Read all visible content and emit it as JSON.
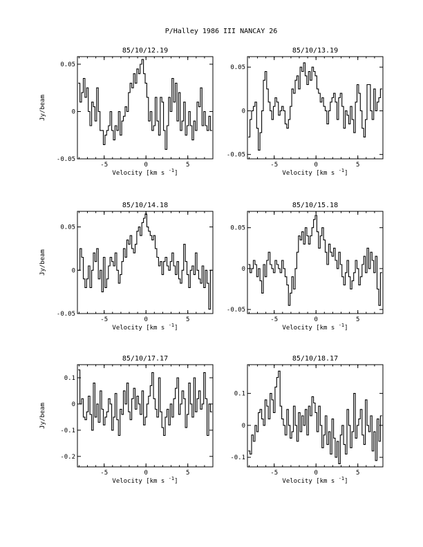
{
  "figure": {
    "title": "P/Halley 1986 III   NANCAY     26"
  },
  "chart_data": [
    {
      "type": "line",
      "title": "85/10/12.19",
      "xlabel": "Velocity [km s",
      "xlabel_sup": "-1",
      "xlabel_end": "]",
      "ylabel": "Jy/beam",
      "xlim": [
        -8.2,
        8.0
      ],
      "ylim": [
        -0.05,
        0.058
      ],
      "xticks": [
        -5,
        0,
        5
      ],
      "yticks": [
        -0.05,
        0,
        0.05
      ],
      "ytick_labels": [
        "-0.05",
        "0",
        "0.05"
      ],
      "x": [
        -8.0,
        -7.8,
        -7.6,
        -7.4,
        -7.2,
        -7.0,
        -6.8,
        -6.6,
        -6.4,
        -6.2,
        -6.0,
        -5.8,
        -5.6,
        -5.4,
        -5.2,
        -5.0,
        -4.8,
        -4.6,
        -4.4,
        -4.2,
        -4.0,
        -3.8,
        -3.6,
        -3.4,
        -3.2,
        -3.0,
        -2.8,
        -2.6,
        -2.4,
        -2.2,
        -2.0,
        -1.8,
        -1.6,
        -1.4,
        -1.2,
        -1.0,
        -0.8,
        -0.6,
        -0.4,
        -0.2,
        0.0,
        0.2,
        0.4,
        0.6,
        0.8,
        1.0,
        1.2,
        1.4,
        1.6,
        1.8,
        2.0,
        2.2,
        2.4,
        2.6,
        2.8,
        3.0,
        3.2,
        3.4,
        3.6,
        3.8,
        4.0,
        4.2,
        4.4,
        4.6,
        4.8,
        5.0,
        5.2,
        5.4,
        5.6,
        5.8,
        6.0,
        6.2,
        6.4,
        6.6,
        6.8,
        7.0,
        7.2,
        7.4,
        7.6,
        7.8
      ],
      "y": [
        0.03,
        0.01,
        0.02,
        0.035,
        0.015,
        0.025,
        0.0,
        -0.015,
        0.01,
        0.005,
        -0.01,
        0.025,
        0.0,
        -0.02,
        -0.02,
        -0.035,
        -0.025,
        -0.02,
        -0.015,
        0.0,
        -0.02,
        -0.03,
        -0.015,
        -0.02,
        0.0,
        -0.025,
        -0.01,
        -0.005,
        0.005,
        0.0,
        0.02,
        0.03,
        0.025,
        0.04,
        0.03,
        0.045,
        0.04,
        0.05,
        0.055,
        0.04,
        0.03,
        0.015,
        -0.01,
        0.0,
        -0.02,
        -0.015,
        0.015,
        -0.01,
        -0.025,
        0.015,
        0.01,
        -0.02,
        -0.04,
        -0.015,
        0.015,
        0.0,
        0.035,
        0.01,
        0.03,
        -0.01,
        0.02,
        -0.02,
        -0.01,
        0.01,
        -0.025,
        -0.015,
        0.0,
        -0.015,
        -0.03,
        -0.01,
        -0.02,
        0.01,
        0.005,
        0.025,
        -0.015,
        0.0,
        -0.015,
        -0.02,
        -0.005,
        -0.02
      ]
    },
    {
      "type": "line",
      "title": "85/10/13.19",
      "xlabel": "Velocity [km s",
      "xlabel_sup": "-1",
      "xlabel_end": "]",
      "ylabel": "",
      "xlim": [
        -8.2,
        8.0
      ],
      "ylim": [
        -0.055,
        0.062
      ],
      "xticks": [
        -5,
        0,
        5
      ],
      "yticks": [
        -0.05,
        0,
        0.05
      ],
      "ytick_labels": [
        "-0.05",
        "0",
        "0.05"
      ],
      "x": [
        -8.0,
        -7.8,
        -7.6,
        -7.4,
        -7.2,
        -7.0,
        -6.8,
        -6.6,
        -6.4,
        -6.2,
        -6.0,
        -5.8,
        -5.6,
        -5.4,
        -5.2,
        -5.0,
        -4.8,
        -4.6,
        -4.4,
        -4.2,
        -4.0,
        -3.8,
        -3.6,
        -3.4,
        -3.2,
        -3.0,
        -2.8,
        -2.6,
        -2.4,
        -2.2,
        -2.0,
        -1.8,
        -1.6,
        -1.4,
        -1.2,
        -1.0,
        -0.8,
        -0.6,
        -0.4,
        -0.2,
        0.0,
        0.2,
        0.4,
        0.6,
        0.8,
        1.0,
        1.2,
        1.4,
        1.6,
        1.8,
        2.0,
        2.2,
        2.4,
        2.6,
        2.8,
        3.0,
        3.2,
        3.4,
        3.6,
        3.8,
        4.0,
        4.2,
        4.4,
        4.6,
        4.8,
        5.0,
        5.2,
        5.4,
        5.6,
        5.8,
        6.0,
        6.2,
        6.4,
        6.6,
        6.8,
        7.0,
        7.2,
        7.4,
        7.6,
        7.8
      ],
      "y": [
        -0.03,
        -0.01,
        0.0,
        0.005,
        0.01,
        -0.02,
        -0.045,
        -0.025,
        0.0,
        0.035,
        0.045,
        0.025,
        0.01,
        0.0,
        -0.01,
        0.005,
        0.015,
        0.01,
        -0.005,
        0.0,
        0.005,
        0.0,
        -0.015,
        -0.02,
        -0.01,
        0.005,
        0.025,
        0.02,
        0.035,
        0.04,
        0.025,
        0.05,
        0.045,
        0.055,
        0.04,
        0.03,
        0.045,
        0.035,
        0.05,
        0.045,
        0.04,
        0.025,
        0.02,
        0.01,
        0.015,
        0.005,
        0.0,
        -0.015,
        0.0,
        0.01,
        0.015,
        0.02,
        0.01,
        -0.01,
        0.015,
        0.02,
        0.005,
        -0.02,
        0.0,
        -0.005,
        -0.015,
        0.005,
        -0.01,
        -0.025,
        0.01,
        0.03,
        0.02,
        0.0,
        -0.02,
        -0.03,
        -0.01,
        0.03,
        0.03,
        0.0,
        -0.01,
        0.025,
        0.0,
        0.01,
        0.015,
        0.025
      ]
    },
    {
      "type": "line",
      "title": "85/10/14.18",
      "xlabel": "Velocity [km s",
      "xlabel_sup": "-1",
      "xlabel_end": "]",
      "ylabel": "Jy/beam",
      "xlim": [
        -8.2,
        8.0
      ],
      "ylim": [
        -0.05,
        0.068
      ],
      "xticks": [
        -5,
        0,
        5
      ],
      "yticks": [
        -0.05,
        0,
        0.05
      ],
      "ytick_labels": [
        "-0.05",
        "0",
        "0.05"
      ],
      "x": [
        -8.0,
        -7.8,
        -7.6,
        -7.4,
        -7.2,
        -7.0,
        -6.8,
        -6.6,
        -6.4,
        -6.2,
        -6.0,
        -5.8,
        -5.6,
        -5.4,
        -5.2,
        -5.0,
        -4.8,
        -4.6,
        -4.4,
        -4.2,
        -4.0,
        -3.8,
        -3.6,
        -3.4,
        -3.2,
        -3.0,
        -2.8,
        -2.6,
        -2.4,
        -2.2,
        -2.0,
        -1.8,
        -1.6,
        -1.4,
        -1.2,
        -1.0,
        -0.8,
        -0.6,
        -0.4,
        -0.2,
        0.0,
        0.2,
        0.4,
        0.6,
        0.8,
        1.0,
        1.2,
        1.4,
        1.6,
        1.8,
        2.0,
        2.2,
        2.4,
        2.6,
        2.8,
        3.0,
        3.2,
        3.4,
        3.6,
        3.8,
        4.0,
        4.2,
        4.4,
        4.6,
        4.8,
        5.0,
        5.2,
        5.4,
        5.6,
        5.8,
        6.0,
        6.2,
        6.4,
        6.6,
        6.8,
        7.0,
        7.2,
        7.4,
        7.6,
        7.8
      ],
      "y": [
        0.0,
        0.025,
        0.015,
        -0.01,
        -0.02,
        -0.01,
        0.005,
        -0.02,
        0.0,
        0.02,
        0.01,
        0.025,
        -0.01,
        0.0,
        -0.025,
        0.015,
        -0.02,
        -0.01,
        0.005,
        0.015,
        0.01,
        0.005,
        0.02,
        0.0,
        -0.015,
        -0.005,
        0.01,
        0.025,
        0.015,
        0.035,
        0.03,
        0.04,
        0.025,
        0.02,
        0.03,
        0.045,
        0.05,
        0.04,
        0.055,
        0.06,
        0.065,
        0.05,
        0.045,
        0.04,
        0.035,
        0.04,
        0.025,
        0.015,
        0.005,
        0.01,
        -0.005,
        0.01,
        0.015,
        0.005,
        0.0,
        0.01,
        0.02,
        0.005,
        -0.005,
        0.01,
        -0.01,
        -0.015,
        0.0,
        0.03,
        0.01,
        -0.005,
        -0.02,
        0.0,
        0.005,
        -0.005,
        0.02,
        0.0,
        -0.01,
        -0.015,
        0.005,
        -0.02,
        0.0,
        -0.015,
        -0.045,
        0.0
      ]
    },
    {
      "type": "line",
      "title": "85/10/15.18",
      "xlabel": "Velocity [km s",
      "xlabel_sup": "-1",
      "xlabel_end": "]",
      "ylabel": "",
      "xlim": [
        -8.2,
        8.0
      ],
      "ylim": [
        -0.055,
        0.07
      ],
      "xticks": [
        -5,
        0,
        5
      ],
      "yticks": [
        -0.05,
        0,
        0.05
      ],
      "ytick_labels": [
        "-0.05",
        "0",
        "0.05"
      ],
      "x": [
        -8.0,
        -7.8,
        -7.6,
        -7.4,
        -7.2,
        -7.0,
        -6.8,
        -6.6,
        -6.4,
        -6.2,
        -6.0,
        -5.8,
        -5.6,
        -5.4,
        -5.2,
        -5.0,
        -4.8,
        -4.6,
        -4.4,
        -4.2,
        -4.0,
        -3.8,
        -3.6,
        -3.4,
        -3.2,
        -3.0,
        -2.8,
        -2.6,
        -2.4,
        -2.2,
        -2.0,
        -1.8,
        -1.6,
        -1.4,
        -1.2,
        -1.0,
        -0.8,
        -0.6,
        -0.4,
        -0.2,
        0.0,
        0.2,
        0.4,
        0.6,
        0.8,
        1.0,
        1.2,
        1.4,
        1.6,
        1.8,
        2.0,
        2.2,
        2.4,
        2.6,
        2.8,
        3.0,
        3.2,
        3.4,
        3.6,
        3.8,
        4.0,
        4.2,
        4.4,
        4.6,
        4.8,
        5.0,
        5.2,
        5.4,
        5.6,
        5.8,
        6.0,
        6.2,
        6.4,
        6.6,
        6.8,
        7.0,
        7.2,
        7.4,
        7.6,
        7.8
      ],
      "y": [
        0.005,
        -0.005,
        0.0,
        0.01,
        0.005,
        -0.01,
        0.0,
        -0.015,
        -0.03,
        0.005,
        -0.01,
        0.01,
        0.02,
        0.005,
        0.0,
        -0.005,
        0.01,
        0.005,
        0.0,
        -0.005,
        0.01,
        0.0,
        -0.01,
        -0.02,
        -0.045,
        -0.03,
        -0.01,
        -0.025,
        0.0,
        0.02,
        0.04,
        0.035,
        0.045,
        0.03,
        0.05,
        0.04,
        0.03,
        0.04,
        0.05,
        0.06,
        0.065,
        0.045,
        0.025,
        0.04,
        0.05,
        0.035,
        0.02,
        0.005,
        0.03,
        0.02,
        0.015,
        0.025,
        0.01,
        0.0,
        0.02,
        0.005,
        -0.01,
        -0.02,
        -0.005,
        0.01,
        -0.01,
        -0.025,
        -0.015,
        -0.005,
        0.01,
        0.0,
        -0.02,
        -0.01,
        0.005,
        0.015,
        -0.005,
        0.025,
        0.0,
        0.02,
        0.01,
        -0.005,
        0.015,
        -0.025,
        -0.045,
        -0.005
      ]
    },
    {
      "type": "line",
      "title": "85/10/17.17",
      "xlabel": "Velocity [km s",
      "xlabel_sup": "-1",
      "xlabel_end": "]",
      "ylabel": "Jy/beam",
      "xlim": [
        -8.2,
        8.0
      ],
      "ylim": [
        -0.24,
        0.15
      ],
      "xticks": [
        -5,
        0,
        5
      ],
      "yticks": [
        -0.2,
        -0.1,
        0,
        0.1
      ],
      "ytick_labels": [
        "-0.2",
        "-0.1",
        "0",
        "0.1"
      ],
      "x": [
        -8.0,
        -7.8,
        -7.6,
        -7.4,
        -7.2,
        -7.0,
        -6.8,
        -6.6,
        -6.4,
        -6.2,
        -6.0,
        -5.8,
        -5.6,
        -5.4,
        -5.2,
        -5.0,
        -4.8,
        -4.6,
        -4.4,
        -4.2,
        -4.0,
        -3.8,
        -3.6,
        -3.4,
        -3.2,
        -3.0,
        -2.8,
        -2.6,
        -2.4,
        -2.2,
        -2.0,
        -1.8,
        -1.6,
        -1.4,
        -1.2,
        -1.0,
        -0.8,
        -0.6,
        -0.4,
        -0.2,
        0.0,
        0.2,
        0.4,
        0.6,
        0.8,
        1.0,
        1.2,
        1.4,
        1.6,
        1.8,
        2.0,
        2.2,
        2.4,
        2.6,
        2.8,
        3.0,
        3.2,
        3.4,
        3.6,
        3.8,
        4.0,
        4.2,
        4.4,
        4.6,
        4.8,
        5.0,
        5.2,
        5.4,
        5.6,
        5.8,
        6.0,
        6.2,
        6.4,
        6.6,
        6.8,
        7.0,
        7.2,
        7.4,
        7.6,
        7.8
      ],
      "y": [
        0.13,
        0.0,
        0.02,
        -0.05,
        -0.06,
        -0.03,
        0.03,
        -0.04,
        -0.1,
        0.08,
        -0.05,
        0.0,
        -0.07,
        0.05,
        -0.02,
        -0.08,
        -0.05,
        -0.03,
        0.02,
        0.0,
        -0.1,
        -0.05,
        0.04,
        -0.06,
        -0.12,
        -0.02,
        -0.04,
        0.05,
        0.0,
        0.08,
        -0.03,
        -0.06,
        0.02,
        0.06,
        -0.02,
        0.03,
        0.0,
        -0.04,
        0.05,
        -0.08,
        -0.05,
        0.0,
        0.03,
        0.07,
        0.12,
        0.02,
        -0.02,
        -0.05,
        0.1,
        -0.03,
        -0.09,
        -0.12,
        -0.05,
        -0.02,
        -0.08,
        0.0,
        -0.05,
        0.02,
        0.06,
        0.1,
        -0.04,
        0.0,
        0.05,
        0.02,
        -0.09,
        -0.04,
        0.08,
        0.0,
        -0.05,
        0.1,
        -0.03,
        0.02,
        0.05,
        -0.02,
        0.0,
        0.12,
        0.02,
        -0.12,
        0.0,
        -0.03
      ]
    },
    {
      "type": "line",
      "title": "85/10/18.17",
      "xlabel": "Velocity [km s",
      "xlabel_sup": "-1",
      "xlabel_end": "]",
      "ylabel": "",
      "xlim": [
        -8.2,
        8.0
      ],
      "ylim": [
        -0.13,
        0.19
      ],
      "xticks": [
        -5,
        0,
        5
      ],
      "yticks": [
        -0.1,
        0,
        0.1
      ],
      "ytick_labels": [
        "-0.1",
        "0",
        "0.1"
      ],
      "x": [
        -8.0,
        -7.8,
        -7.6,
        -7.4,
        -7.2,
        -7.0,
        -6.8,
        -6.6,
        -6.4,
        -6.2,
        -6.0,
        -5.8,
        -5.6,
        -5.4,
        -5.2,
        -5.0,
        -4.8,
        -4.6,
        -4.4,
        -4.2,
        -4.0,
        -3.8,
        -3.6,
        -3.4,
        -3.2,
        -3.0,
        -2.8,
        -2.6,
        -2.4,
        -2.2,
        -2.0,
        -1.8,
        -1.6,
        -1.4,
        -1.2,
        -1.0,
        -0.8,
        -0.6,
        -0.4,
        -0.2,
        0.0,
        0.2,
        0.4,
        0.6,
        0.8,
        1.0,
        1.2,
        1.4,
        1.6,
        1.8,
        2.0,
        2.2,
        2.4,
        2.6,
        2.8,
        3.0,
        3.2,
        3.4,
        3.6,
        3.8,
        4.0,
        4.2,
        4.4,
        4.6,
        4.8,
        5.0,
        5.2,
        5.4,
        5.6,
        5.8,
        6.0,
        6.2,
        6.4,
        6.6,
        6.8,
        7.0,
        7.2,
        7.4,
        7.6,
        7.8
      ],
      "y": [
        -0.08,
        -0.09,
        -0.03,
        -0.05,
        0.0,
        -0.02,
        0.04,
        0.05,
        0.02,
        0.0,
        0.08,
        0.06,
        0.02,
        0.1,
        0.08,
        0.04,
        0.12,
        0.15,
        0.17,
        0.06,
        0.02,
        0.0,
        -0.03,
        0.05,
        0.0,
        -0.04,
        -0.02,
        0.06,
        0.0,
        -0.05,
        0.04,
        -0.02,
        0.03,
        0.0,
        0.05,
        -0.03,
        0.06,
        0.03,
        0.09,
        0.07,
        0.04,
        -0.02,
        0.06,
        0.0,
        -0.07,
        -0.03,
        0.03,
        -0.06,
        -0.02,
        -0.09,
        0.02,
        -0.04,
        -0.1,
        -0.05,
        -0.12,
        -0.03,
        0.0,
        -0.06,
        -0.09,
        0.05,
        0.0,
        -0.07,
        -0.02,
        0.1,
        -0.04,
        0.0,
        0.02,
        0.05,
        -0.03,
        -0.06,
        0.08,
        0.0,
        -0.02,
        0.03,
        -0.08,
        -0.02,
        -0.11,
        0.02,
        -0.05,
        0.03
      ]
    }
  ]
}
